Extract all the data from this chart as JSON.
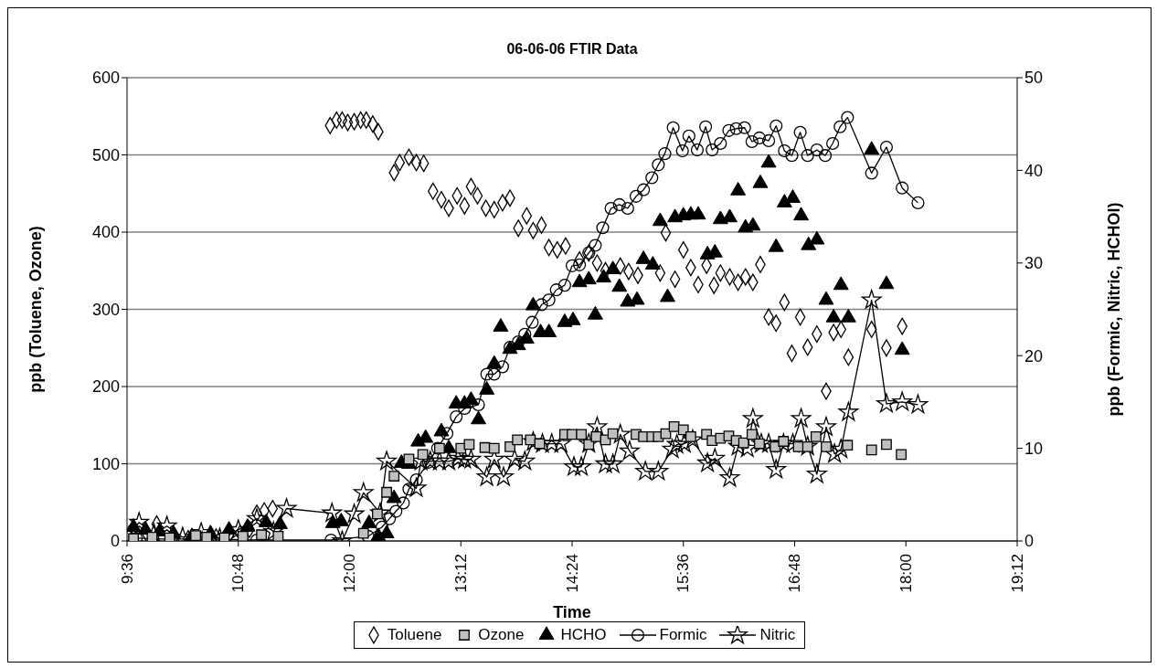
{
  "chart_data": {
    "type": "scatter",
    "title": "06-06-06 FTIR Data",
    "xlabel": "Time",
    "ylabel": "ppb (Toluene, Ozone)",
    "y2label": "ppb (Formic, Nitric, HCHOl)",
    "xlim": [
      9.6,
      19.2
    ],
    "xticks": [
      {
        "value": 9.6,
        "label": "9:36"
      },
      {
        "value": 10.8,
        "label": "10:48"
      },
      {
        "value": 12.0,
        "label": "12:00"
      },
      {
        "value": 13.2,
        "label": "13:12"
      },
      {
        "value": 14.4,
        "label": "14:24"
      },
      {
        "value": 15.6,
        "label": "15:36"
      },
      {
        "value": 16.8,
        "label": "16:48"
      },
      {
        "value": 18.0,
        "label": "18:00"
      },
      {
        "value": 19.2,
        "label": "19:12"
      }
    ],
    "ylim": [
      0,
      600
    ],
    "yticks": [
      0,
      100,
      200,
      300,
      400,
      500,
      600
    ],
    "y2lim": [
      0,
      50
    ],
    "y2ticks": [
      0,
      10,
      20,
      30,
      40,
      50
    ],
    "grid": "y",
    "legend": "bottom",
    "series": [
      {
        "name": "Toluene",
        "type": "scatter",
        "marker": "diamond",
        "color": "#000000",
        "x": [
          9.67,
          9.82,
          9.92,
          10.11,
          10.26,
          10.41,
          10.56,
          10.7,
          10.82,
          10.92,
          11.0,
          11.08,
          11.17,
          11.79,
          11.86,
          11.92,
          11.98,
          12.05,
          12.12,
          12.18,
          12.25,
          12.31,
          12.48,
          12.54,
          12.64,
          12.72,
          12.8,
          12.9,
          12.99,
          13.07,
          13.16,
          13.24,
          13.31,
          13.38,
          13.47,
          13.56,
          13.65,
          13.73,
          13.82,
          13.91,
          13.98,
          14.07,
          14.15,
          14.24,
          14.33,
          14.48,
          14.58,
          14.67,
          14.76,
          14.92,
          15.01,
          15.11,
          15.35,
          15.41,
          15.51,
          15.6,
          15.68,
          15.76,
          15.85,
          15.93,
          16.0,
          16.1,
          16.19,
          16.27,
          16.35,
          16.43,
          16.52,
          16.6,
          16.69,
          16.77,
          16.86,
          16.94,
          17.04,
          17.14,
          17.22,
          17.3,
          17.38,
          17.63,
          17.79,
          17.96
        ],
        "values": [
          5,
          8,
          22,
          6,
          3,
          2,
          5,
          8,
          10,
          15,
          36,
          39,
          42,
          538,
          545,
          545,
          542,
          543,
          545,
          545,
          540,
          530,
          477,
          490,
          497,
          490,
          489,
          453,
          442,
          431,
          447,
          434,
          459,
          447,
          431,
          429,
          438,
          444,
          405,
          421,
          402,
          409,
          380,
          377,
          382,
          364,
          373,
          360,
          350,
          356,
          349,
          344,
          347,
          399,
          339,
          377,
          354,
          332,
          357,
          331,
          347,
          342,
          335,
          342,
          335,
          358,
          290,
          282,
          309,
          243,
          290,
          251,
          268,
          194,
          270,
          274,
          238,
          274,
          250,
          278
        ]
      },
      {
        "name": "Ozone",
        "type": "scatter",
        "marker": "square",
        "color": "#c0c0c0",
        "x": [
          9.67,
          9.87,
          10.06,
          10.34,
          10.46,
          10.65,
          10.85,
          11.05,
          11.23,
          12.15,
          12.3,
          12.4,
          12.48,
          12.64,
          12.79,
          12.97,
          13.2,
          13.29,
          13.46,
          13.56,
          13.73,
          13.81,
          13.95,
          14.05,
          14.32,
          14.4,
          14.5,
          14.58,
          14.66,
          14.76,
          14.84,
          15.09,
          15.17,
          15.26,
          15.33,
          15.41,
          15.5,
          15.6,
          15.68,
          15.85,
          15.91,
          16.0,
          16.09,
          16.17,
          16.25,
          16.34,
          16.42,
          16.59,
          16.68,
          16.84,
          16.94,
          17.03,
          17.14,
          17.37,
          17.63,
          17.79,
          17.95
        ],
        "values": [
          3,
          5,
          4,
          7,
          5,
          4,
          6,
          8,
          6,
          10,
          35,
          63,
          84,
          106,
          112,
          120,
          120,
          125,
          121,
          120,
          122,
          131,
          131,
          126,
          138,
          138,
          138,
          125,
          135,
          131,
          139,
          138,
          135,
          135,
          135,
          139,
          148,
          144,
          135,
          138,
          130,
          133,
          136,
          130,
          127,
          138,
          126,
          122,
          129,
          122,
          122,
          135,
          122,
          124,
          118,
          125,
          112
        ]
      },
      {
        "name": "HCHO",
        "type": "scatter",
        "marker": "triangle",
        "color": "#000000",
        "axis": "y2",
        "x": [
          9.67,
          9.8,
          9.95,
          10.1,
          10.3,
          10.5,
          10.7,
          10.9,
          11.1,
          11.25,
          11.82,
          11.91,
          12.21,
          12.31,
          12.4,
          12.48,
          12.56,
          12.64,
          12.74,
          12.82,
          12.99,
          13.07,
          13.15,
          13.24,
          13.31,
          13.39,
          13.48,
          13.56,
          13.63,
          13.73,
          13.82,
          13.91,
          13.98,
          14.06,
          14.15,
          14.32,
          14.41,
          14.48,
          14.58,
          14.65,
          14.74,
          14.84,
          14.91,
          15.0,
          15.1,
          15.17,
          15.27,
          15.35,
          15.43,
          15.51,
          15.6,
          15.68,
          15.76,
          15.86,
          15.94,
          16.0,
          16.1,
          16.19,
          16.27,
          16.35,
          16.43,
          16.52,
          16.6,
          16.69,
          16.78,
          16.87,
          16.95,
          17.04,
          17.14,
          17.22,
          17.3,
          17.38,
          17.63,
          17.79,
          17.96
        ],
        "values": [
          1.5,
          1.2,
          1.0,
          0.8,
          0.5,
          0.8,
          1.2,
          1.5,
          2.0,
          1.8,
          1.9,
          2.1,
          1.9,
          0.5,
          0.8,
          4.6,
          8.4,
          8.3,
          10.7,
          11.1,
          11.8,
          10.0,
          14.8,
          14.8,
          15.2,
          13.1,
          16.3,
          19.1,
          23.1,
          20.7,
          21.1,
          21.8,
          25.4,
          22.5,
          22.5,
          23.6,
          23.8,
          27.9,
          28.2,
          24.4,
          28.4,
          29.3,
          27.4,
          25.8,
          26.0,
          30.4,
          29.8,
          34.5,
          26.3,
          34.9,
          35.1,
          35.2,
          35.2,
          30.9,
          31.1,
          34.7,
          34.9,
          37.8,
          33.8,
          34.0,
          38.6,
          40.8,
          31.7,
          36.5,
          37.0,
          35.1,
          31.9,
          32.5,
          26.0,
          24.1,
          27.6,
          24.1,
          42.2,
          27.7,
          20.6
        ]
      },
      {
        "name": "Formic",
        "type": "line",
        "marker": "circle",
        "line_style": "solid",
        "color": "#000000",
        "axis": "y2",
        "x": [
          9.7,
          10.0,
          10.5,
          11.0,
          11.8,
          12.2,
          12.35,
          12.43,
          12.5,
          12.58,
          12.64,
          12.72,
          12.85,
          12.95,
          13.05,
          13.15,
          13.24,
          13.39,
          13.48,
          13.56,
          13.65,
          13.73,
          13.82,
          13.89,
          13.97,
          14.07,
          14.15,
          14.23,
          14.32,
          14.4,
          14.48,
          14.58,
          14.65,
          14.73,
          14.82,
          14.91,
          15.0,
          15.09,
          15.17,
          15.26,
          15.33,
          15.4,
          15.49,
          15.59,
          15.66,
          15.75,
          15.84,
          15.91,
          16.0,
          16.09,
          16.17,
          16.26,
          16.34,
          16.42,
          16.52,
          16.6,
          16.69,
          16.77,
          16.86,
          16.94,
          17.04,
          17.13,
          17.21,
          17.29,
          17.37,
          17.63,
          17.79,
          17.96,
          18.13
        ],
        "values": [
          0.3,
          0.2,
          0.2,
          0.1,
          0.1,
          0.5,
          1.5,
          2.4,
          3.2,
          4.1,
          5.6,
          6.6,
          8.5,
          10.0,
          11.6,
          13.4,
          14.3,
          14.7,
          18.0,
          18.0,
          18.8,
          20.9,
          21.5,
          22.3,
          23.6,
          25.5,
          26.0,
          27.1,
          27.6,
          29.7,
          29.8,
          31.1,
          31.9,
          33.8,
          35.9,
          36.3,
          35.9,
          37.2,
          37.9,
          39.2,
          40.6,
          41.8,
          44.6,
          42.1,
          43.7,
          42.2,
          44.7,
          42.2,
          42.9,
          44.3,
          44.5,
          44.6,
          43.1,
          43.5,
          43.2,
          44.8,
          42.1,
          41.6,
          44.1,
          41.6,
          42.2,
          41.6,
          42.9,
          44.7,
          45.7,
          39.7,
          42.5,
          38.1,
          36.5
        ]
      },
      {
        "name": "Nitric",
        "type": "line",
        "marker": "star",
        "line_style": "solid",
        "color": "#000000",
        "axis": "y2",
        "x": [
          9.62,
          9.73,
          9.89,
          10.03,
          10.2,
          10.4,
          10.6,
          10.8,
          11.0,
          11.18,
          11.32,
          11.81,
          11.92,
          12.05,
          12.15,
          12.33,
          12.4,
          12.72,
          12.77,
          12.87,
          12.97,
          13.07,
          13.17,
          13.24,
          13.31,
          13.48,
          13.56,
          13.66,
          13.78,
          13.89,
          13.98,
          14.08,
          14.18,
          14.28,
          14.42,
          14.5,
          14.58,
          14.67,
          14.76,
          14.84,
          14.92,
          15.02,
          15.19,
          15.33,
          15.48,
          15.53,
          15.61,
          15.7,
          15.86,
          15.94,
          16.1,
          16.19,
          16.29,
          16.35,
          16.44,
          16.52,
          16.6,
          16.68,
          16.78,
          16.87,
          16.94,
          17.04,
          17.14,
          17.23,
          17.3,
          17.38,
          17.63,
          17.79,
          17.96,
          18.13
        ],
        "values": [
          0.5,
          2.0,
          0.8,
          1.6,
          0.4,
          0.9,
          0.3,
          1.2,
          2.4,
          1.0,
          3.5,
          3.0,
          0.0,
          2.9,
          5.2,
          3.0,
          8.6,
          5.7,
          8.6,
          8.6,
          8.6,
          8.6,
          8.9,
          8.8,
          8.8,
          6.9,
          8.8,
          6.9,
          8.8,
          8.6,
          10.7,
          10.5,
          10.5,
          10.5,
          8.0,
          8.0,
          10.5,
          12.3,
          8.3,
          8.3,
          11.5,
          9.7,
          7.5,
          7.5,
          9.9,
          10.4,
          10.5,
          10.9,
          8.4,
          8.9,
          6.8,
          10.2,
          10.0,
          13.2,
          10.5,
          10.5,
          7.7,
          10.5,
          10.5,
          13.2,
          10.2,
          7.2,
          12.3,
          9.4,
          9.9,
          13.9,
          26.0,
          14.8,
          15.0,
          14.7
        ]
      }
    ]
  }
}
